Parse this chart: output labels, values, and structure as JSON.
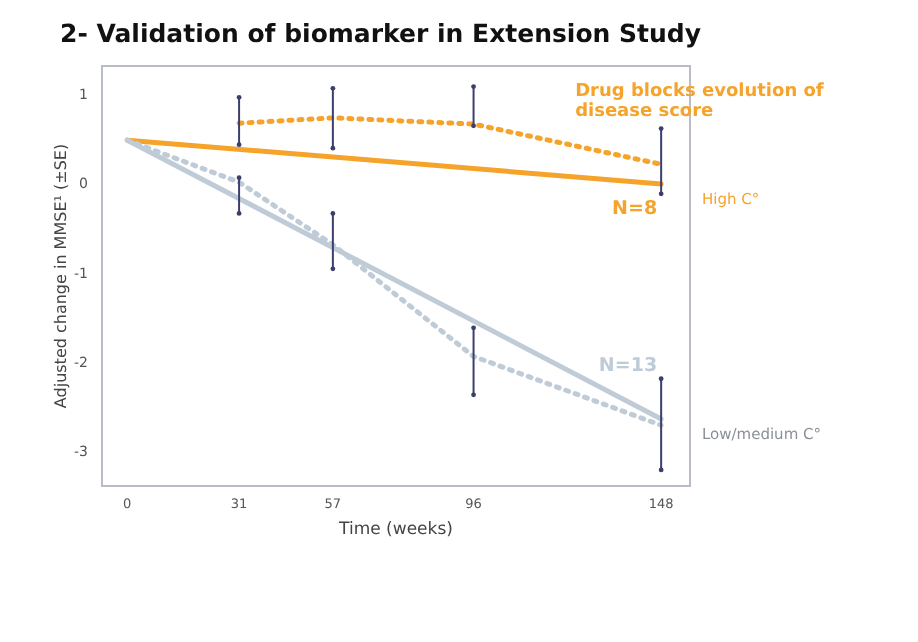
{
  "chart_data": {
    "type": "line",
    "title": "2- Validation of biomarker in Extension Study",
    "xlabel": "Time (weeks)",
    "ylabel": "Adjusted change in MMSE¹ (±SE)",
    "xlim": [
      -7,
      156
    ],
    "xticks": [
      0,
      31,
      57,
      96,
      148
    ],
    "ylim": [
      -3.4,
      1.3
    ],
    "yticks": [
      -3,
      -2,
      -1,
      0,
      1
    ],
    "grid": false,
    "marker": "none",
    "series": [
      {
        "name": "High C°",
        "color": "#f5a32b",
        "x": [
          0,
          148
        ],
        "values": [
          0.47,
          -0.02
        ],
        "line_style": "solid"
      },
      {
        "color": "#f5a32b",
        "x": [
          31,
          57,
          96,
          148
        ],
        "values": [
          0.66,
          0.72,
          0.65,
          0.2
        ],
        "line_style": "dotted",
        "errors": [
          [
            0.42,
            0.95
          ],
          [
            0.38,
            1.05
          ],
          [
            0.63,
            1.07
          ],
          [
            -0.13,
            0.6
          ]
        ]
      },
      {
        "name": "Low/medium C°",
        "color": "#bfcbd6",
        "x": [
          0,
          148
        ],
        "values": [
          0.47,
          -2.65
        ],
        "line_style": "solid"
      },
      {
        "color": "#bfcbd6",
        "x": [
          0,
          31,
          57,
          96,
          148
        ],
        "values": [
          0.47,
          0.0,
          -0.7,
          -1.95,
          -2.72
        ],
        "line_style": "dotted",
        "errors": [
          null,
          [
            -0.35,
            0.05
          ],
          [
            -0.97,
            -0.35
          ],
          [
            -2.38,
            -1.63
          ],
          [
            -3.22,
            -2.2
          ]
        ]
      }
    ],
    "annotations": [
      "Drug blocks evolution of disease score",
      "N=8",
      "N=13"
    ]
  }
}
